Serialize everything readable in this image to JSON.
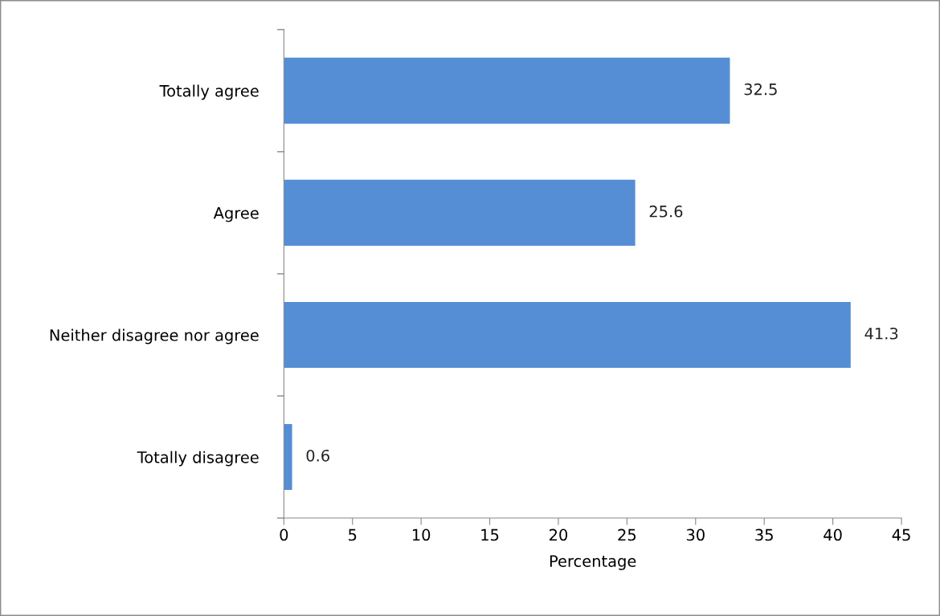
{
  "chart_data": {
    "type": "bar",
    "orientation": "horizontal",
    "xlabel": "Percentage",
    "categories": [
      "Totally agree",
      "Agree",
      "Neither disagree nor agree",
      "Totally disagree"
    ],
    "values": [
      32.5,
      25.6,
      41.3,
      0.6
    ],
    "color": "#558ed5",
    "xlim": [
      0,
      45
    ],
    "xticks": [
      0,
      5,
      10,
      15,
      20,
      25,
      30,
      35,
      40,
      45
    ],
    "grid": false,
    "data_labels": true
  }
}
